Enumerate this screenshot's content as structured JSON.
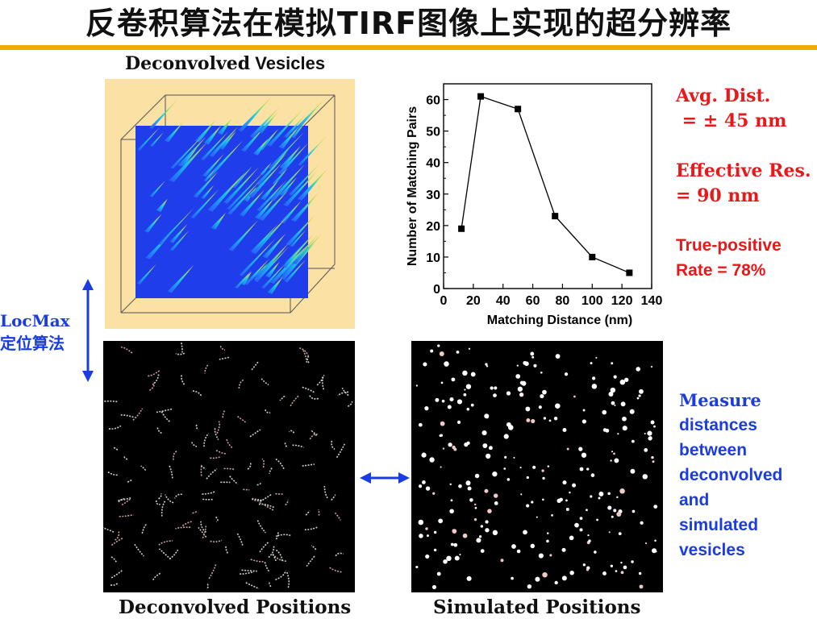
{
  "title": "反卷积算法在模拟TIRF图像上实现的超分辨率",
  "top_left_caption": {
    "bold": "Deconvolved",
    "rest": " Vesicles"
  },
  "locmax": {
    "line1": "LocMax",
    "line2": "定位算法"
  },
  "captions": {
    "deconvolved_positions": "Deconvolved Positions",
    "simulated_positions": "Simulated Positions"
  },
  "notes": {
    "avg_dist_1": "Avg. Dist.",
    "avg_dist_2": " = ± 45 nm",
    "eff_res_1": "Effective Res.",
    "eff_res_2": "= 90 nm",
    "tpr_1": "True-positive",
    "tpr_2": "Rate = 78%",
    "measure": [
      "Measure",
      "distances",
      "between",
      "deconvolved",
      "and",
      "simulated",
      "vesicles"
    ]
  },
  "colors": {
    "accent_bar": "#f2a900",
    "red": "#e8181b",
    "blue": "#1a3ce0",
    "surface": "#1f3dea"
  },
  "chart_data": {
    "type": "line",
    "x": [
      12,
      25,
      50,
      75,
      100,
      125
    ],
    "values": [
      19,
      61,
      57,
      23,
      10,
      5
    ],
    "xlabel": "Matching Distance (nm)",
    "ylabel": "Number of Matching Pairs",
    "xlim": [
      0,
      140
    ],
    "ylim": [
      0,
      65
    ],
    "xticks": [
      0,
      20,
      40,
      60,
      80,
      100,
      120,
      140
    ],
    "yticks": [
      0,
      10,
      20,
      30,
      40,
      50,
      60
    ],
    "grid": false,
    "marker": "square"
  }
}
